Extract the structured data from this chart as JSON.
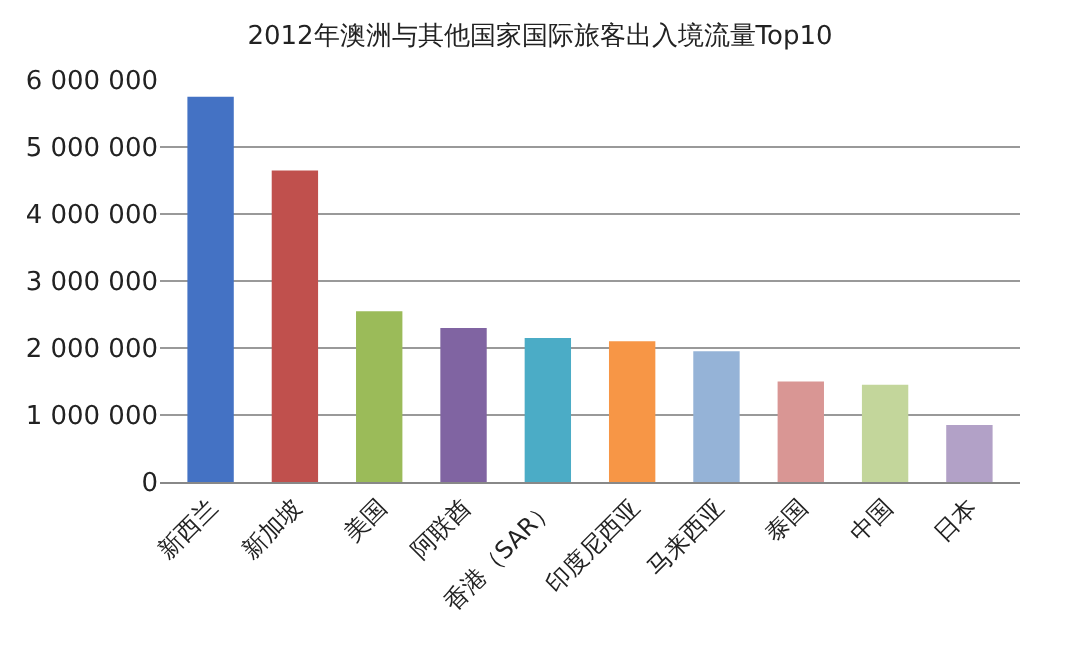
{
  "chart_data": {
    "type": "bar",
    "title": "2012年澳洲与其他国家国际旅客出入境流量Top10",
    "categories": [
      "新西兰",
      "新加坡",
      "美国",
      "阿联酋",
      "香港（SAR）",
      "印度尼西亚",
      "马来西亚",
      "泰国",
      "中国",
      "日本"
    ],
    "values": [
      5750000,
      4650000,
      2550000,
      2300000,
      2150000,
      2100000,
      1950000,
      1500000,
      1450000,
      850000
    ],
    "colors": [
      "#4472c4",
      "#c0504d",
      "#9bbb59",
      "#8064a2",
      "#4bacc6",
      "#f79646",
      "#95b3d7",
      "#d99694",
      "#c3d69b",
      "#b2a1c7"
    ],
    "ylim": [
      0,
      6000000
    ],
    "yticks": [
      0,
      {
        "value": 1000000,
        "label": "1 000 000"
      },
      {
        "value": 2000000,
        "label": "2 000 000"
      },
      {
        "value": 3000000,
        "label": "3 000 000"
      },
      {
        "value": 4000000,
        "label": "4 000 000"
      },
      {
        "value": 5000000,
        "label": "5 000 000"
      },
      {
        "value": 6000000,
        "label": "6 000 000"
      }
    ],
    "grid": "y"
  }
}
